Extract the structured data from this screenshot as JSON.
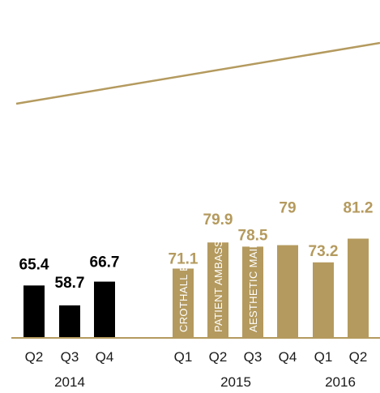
{
  "chart_data": {
    "type": "bar",
    "colors": {
      "past": "#000000",
      "current": "#b49a5e",
      "trend": "#b49a5e",
      "axis": "#b49a5e"
    },
    "bars": [
      {
        "quarter": "Q2",
        "year": "2014",
        "value": 65.4,
        "label": "65.4",
        "group": "past"
      },
      {
        "quarter": "Q3",
        "year": "2014",
        "value": 58.7,
        "label": "58.7",
        "group": "past"
      },
      {
        "quarter": "Q4",
        "year": "2014",
        "value": 66.7,
        "label": "66.7",
        "group": "past"
      },
      {
        "quarter": "Q1",
        "year": "2015",
        "value": 71.1,
        "label": "71.1",
        "group": "current",
        "annotation": "CROTHALL E2"
      },
      {
        "quarter": "Q2",
        "year": "2015",
        "value": 79.9,
        "label": "79.9",
        "group": "current",
        "annotation": "PATIENT AMBASSADOR"
      },
      {
        "quarter": "Q3",
        "year": "2015",
        "value": 78.5,
        "label": "78.5",
        "group": "current",
        "annotation": "AESTHETIC MAINTENANCE PROGRAM"
      },
      {
        "quarter": "Q4",
        "year": "2015",
        "value": 79,
        "label": "79",
        "group": "current"
      },
      {
        "quarter": "Q1",
        "year": "2016",
        "value": 73.2,
        "label": "73.2",
        "group": "current"
      },
      {
        "quarter": "Q2",
        "year": "2016",
        "value": 81.2,
        "label": "81.2",
        "group": "current"
      }
    ],
    "year_labels": [
      "2014",
      "2015",
      "2016"
    ],
    "trendline": true,
    "legend": "none",
    "grid": false,
    "title": "",
    "xlabel": "",
    "ylabel": ""
  }
}
